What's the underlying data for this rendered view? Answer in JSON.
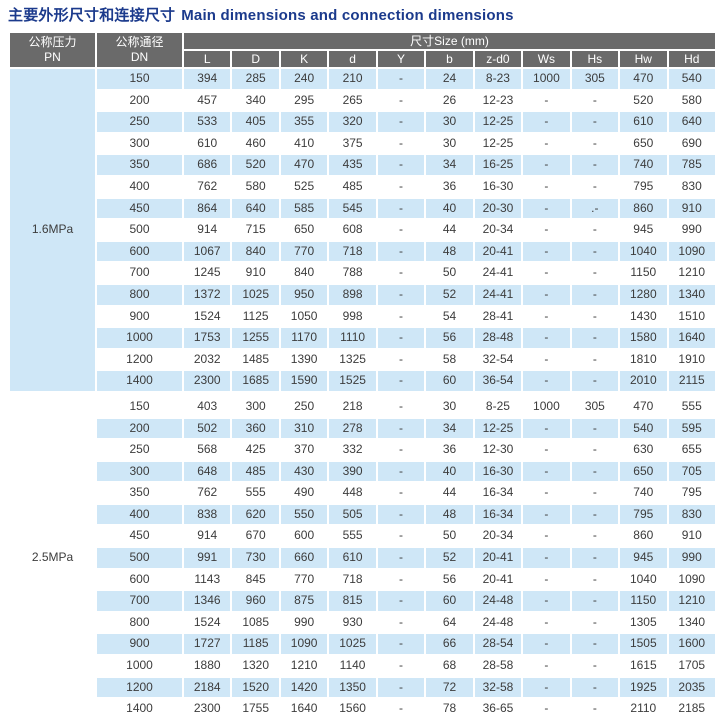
{
  "title": {
    "zh": "主要外形尺寸和连接尺寸",
    "en": "Main dimensions and connection dimensions"
  },
  "table": {
    "pn_header": {
      "zh": "公称压力",
      "abbr": "PN"
    },
    "dn_header": {
      "zh": "公称通径",
      "abbr": "DN"
    },
    "size_group_header": "尺寸Size (mm)",
    "size_columns": [
      "L",
      "D",
      "K",
      "d",
      "Y",
      "b",
      "z-d0",
      "Ws",
      "Hs",
      "Hw",
      "Hd"
    ],
    "sections": [
      {
        "pn": "1.6MPa",
        "rows": [
          {
            "dn": "150",
            "values": [
              "394",
              "285",
              "240",
              "210",
              "-",
              "24",
              "8-23",
              "1000",
              "305",
              "470",
              "540"
            ]
          },
          {
            "dn": "200",
            "values": [
              "457",
              "340",
              "295",
              "265",
              "-",
              "26",
              "12-23",
              "-",
              "-",
              "520",
              "580"
            ]
          },
          {
            "dn": "250",
            "values": [
              "533",
              "405",
              "355",
              "320",
              "-",
              "30",
              "12-25",
              "-",
              "-",
              "610",
              "640"
            ]
          },
          {
            "dn": "300",
            "values": [
              "610",
              "460",
              "410",
              "375",
              "-",
              "30",
              "12-25",
              "-",
              "-",
              "650",
              "690"
            ]
          },
          {
            "dn": "350",
            "values": [
              "686",
              "520",
              "470",
              "435",
              "-",
              "34",
              "16-25",
              "-",
              "-",
              "740",
              "785"
            ]
          },
          {
            "dn": "400",
            "values": [
              "762",
              "580",
              "525",
              "485",
              "-",
              "36",
              "16-30",
              "-",
              "-",
              "795",
              "830"
            ]
          },
          {
            "dn": "450",
            "values": [
              "864",
              "640",
              "585",
              "545",
              "-",
              "40",
              "20-30",
              "-",
              ".-",
              "860",
              "910"
            ]
          },
          {
            "dn": "500",
            "values": [
              "914",
              "715",
              "650",
              "608",
              "-",
              "44",
              "20-34",
              "-",
              "-",
              "945",
              "990"
            ]
          },
          {
            "dn": "600",
            "values": [
              "1067",
              "840",
              "770",
              "718",
              "-",
              "48",
              "20-41",
              "-",
              "-",
              "1040",
              "1090"
            ]
          },
          {
            "dn": "700",
            "values": [
              "1245",
              "910",
              "840",
              "788",
              "-",
              "50",
              "24-41",
              "-",
              "-",
              "1150",
              "1210"
            ]
          },
          {
            "dn": "800",
            "values": [
              "1372",
              "1025",
              "950",
              "898",
              "-",
              "52",
              "24-41",
              "-",
              "-",
              "1280",
              "1340"
            ]
          },
          {
            "dn": "900",
            "values": [
              "1524",
              "1125",
              "1050",
              "998",
              "-",
              "54",
              "28-41",
              "-",
              "-",
              "1430",
              "1510"
            ]
          },
          {
            "dn": "1000",
            "values": [
              "1753",
              "1255",
              "1170",
              "1110",
              "-",
              "56",
              "28-48",
              "-",
              "-",
              "1580",
              "1640"
            ]
          },
          {
            "dn": "1200",
            "values": [
              "2032",
              "1485",
              "1390",
              "1325",
              "-",
              "58",
              "32-54",
              "-",
              "-",
              "1810",
              "1910"
            ]
          },
          {
            "dn": "1400",
            "values": [
              "2300",
              "1685",
              "1590",
              "1525",
              "-",
              "60",
              "36-54",
              "-",
              "-",
              "2010",
              "2115"
            ]
          }
        ]
      },
      {
        "pn": "2.5MPa",
        "rows": [
          {
            "dn": "150",
            "values": [
              "403",
              "300",
              "250",
              "218",
              "-",
              "30",
              "8-25",
              "1000",
              "305",
              "470",
              "555"
            ]
          },
          {
            "dn": "200",
            "values": [
              "502",
              "360",
              "310",
              "278",
              "-",
              "34",
              "12-25",
              "-",
              "-",
              "540",
              "595"
            ]
          },
          {
            "dn": "250",
            "values": [
              "568",
              "425",
              "370",
              "332",
              "-",
              "36",
              "12-30",
              "-",
              "-",
              "630",
              "655"
            ]
          },
          {
            "dn": "300",
            "values": [
              "648",
              "485",
              "430",
              "390",
              "-",
              "40",
              "16-30",
              "-",
              "-",
              "650",
              "705"
            ]
          },
          {
            "dn": "350",
            "values": [
              "762",
              "555",
              "490",
              "448",
              "-",
              "44",
              "16-34",
              "-",
              "-",
              "740",
              "795"
            ]
          },
          {
            "dn": "400",
            "values": [
              "838",
              "620",
              "550",
              "505",
              "-",
              "48",
              "16-34",
              "-",
              "-",
              "795",
              "830"
            ]
          },
          {
            "dn": "450",
            "values": [
              "914",
              "670",
              "600",
              "555",
              "-",
              "50",
              "20-34",
              "-",
              "-",
              "860",
              "910"
            ]
          },
          {
            "dn": "500",
            "values": [
              "991",
              "730",
              "660",
              "610",
              "-",
              "52",
              "20-41",
              "-",
              "-",
              "945",
              "990"
            ]
          },
          {
            "dn": "600",
            "values": [
              "1143",
              "845",
              "770",
              "718",
              "-",
              "56",
              "20-41",
              "-",
              "-",
              "1040",
              "1090"
            ]
          },
          {
            "dn": "700",
            "values": [
              "1346",
              "960",
              "875",
              "815",
              "-",
              "60",
              "24-48",
              "-",
              "-",
              "1150",
              "1210"
            ]
          },
          {
            "dn": "800",
            "values": [
              "1524",
              "1085",
              "990",
              "930",
              "-",
              "64",
              "24-48",
              "-",
              "-",
              "1305",
              "1340"
            ]
          },
          {
            "dn": "900",
            "values": [
              "1727",
              "1185",
              "1090",
              "1025",
              "-",
              "66",
              "28-54",
              "-",
              "-",
              "1505",
              "1600"
            ]
          },
          {
            "dn": "1000",
            "values": [
              "1880",
              "1320",
              "1210",
              "1140",
              "-",
              "68",
              "28-58",
              "-",
              "-",
              "1615",
              "1705"
            ]
          },
          {
            "dn": "1200",
            "values": [
              "2184",
              "1520",
              "1420",
              "1350",
              "-",
              "72",
              "32-58",
              "-",
              "-",
              "1925",
              "2035"
            ]
          },
          {
            "dn": "1400",
            "values": [
              "2300",
              "1755",
              "1640",
              "1560",
              "-",
              "78",
              "36-65",
              "-",
              "-",
              "2110",
              "2185"
            ]
          }
        ]
      }
    ]
  },
  "colors": {
    "title_text": "#1b3a8c",
    "header_bg": "#6a6a6a",
    "header_text": "#ffffff",
    "stripe_blue": "#cfe7f7",
    "body_text": "#3c3c3c",
    "grid_line": "#ffffff"
  }
}
